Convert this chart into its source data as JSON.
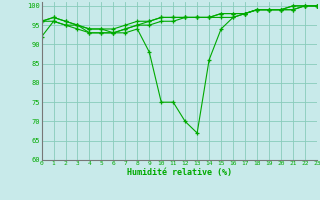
{
  "x": [
    0,
    1,
    2,
    3,
    4,
    5,
    6,
    7,
    8,
    9,
    10,
    11,
    12,
    13,
    14,
    15,
    16,
    17,
    18,
    19,
    20,
    21,
    22,
    23
  ],
  "line1": [
    92,
    96,
    95,
    94,
    93,
    93,
    93,
    93,
    94,
    88,
    75,
    75,
    70,
    67,
    86,
    94,
    97,
    98,
    99,
    99,
    99,
    99,
    100,
    100
  ],
  "line2": [
    96,
    96,
    95,
    95,
    93,
    93,
    93,
    94,
    95,
    95,
    96,
    96,
    97,
    97,
    97,
    97,
    97,
    98,
    99,
    99,
    99,
    99,
    100,
    100
  ],
  "line3": [
    96,
    97,
    96,
    95,
    94,
    94,
    94,
    95,
    96,
    96,
    97,
    97,
    97,
    97,
    97,
    98,
    98,
    98,
    99,
    99,
    99,
    100,
    100,
    100
  ],
  "line4": [
    96,
    97,
    96,
    95,
    94,
    94,
    93,
    94,
    95,
    96,
    97,
    97,
    97,
    97,
    97,
    98,
    98,
    98,
    99,
    99,
    99,
    100,
    100,
    100
  ],
  "background_color": "#c8eaea",
  "grid_color": "#88ccbb",
  "line_color": "#00aa00",
  "xlabel": "Humidité relative (%)",
  "ylim": [
    60,
    101
  ],
  "xlim": [
    0,
    23
  ],
  "yticks": [
    60,
    65,
    70,
    75,
    80,
    85,
    90,
    95,
    100
  ],
  "xticks": [
    0,
    1,
    2,
    3,
    4,
    5,
    6,
    7,
    8,
    9,
    10,
    11,
    12,
    13,
    14,
    15,
    16,
    17,
    18,
    19,
    20,
    21,
    22,
    23
  ]
}
